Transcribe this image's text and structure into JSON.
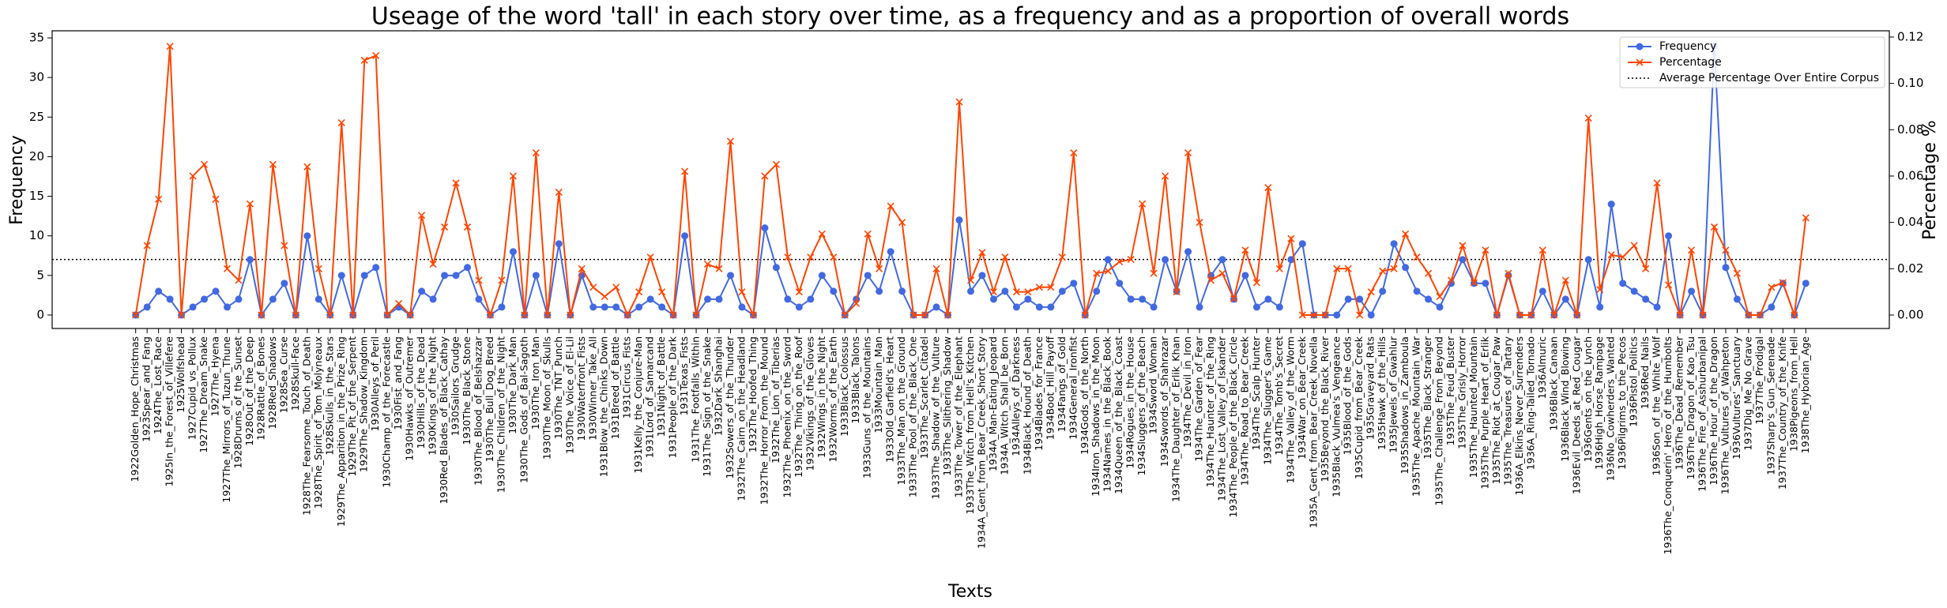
{
  "chart_data": {
    "type": "line",
    "title": "Useage of the word 'tall' in each story over time, as a frequency and as a proportion of overall words",
    "x_label": "Texts",
    "y_label": "Frequency",
    "y2_label": "Percentage %",
    "legend": "upper right",
    "categories": [
      "1922Golden_Hope_Christmas",
      "1923Spear_and_Fang",
      "1924The_Lost_Race",
      "1925In_the_Forest_of_Villefere",
      "1925Wolfshead",
      "1927Cupid_vs_Pollux",
      "1927The_Dream_Snake",
      "1927The_Hyena",
      "1927The_Mirrors_of_Tuzun_Thune",
      "1928Drums_of_the_Sunset",
      "1928Out_of_the_Deep",
      "1928Rattle_of_Bones",
      "1928Red_Shadows",
      "1928Sea_Curse",
      "1928Skull-Face",
      "1928The_Fearsome_Touch_of_Death",
      "1928The_Spirit_of_Tom_Molyneaux",
      "1928Skulls_in_the_Stars",
      "1929The_Apparition_in_the_Prize_Ring",
      "1929The_Pit_of_the_Serpent",
      "1929The_Shadow_Kingdom",
      "1930Alleys_of_Peril",
      "1930Champ_of_the_Forecastle",
      "1930Fist_and_Fang",
      "1930Hawks_of_Outremer",
      "1930Hills_of_the_Dead",
      "1930Kings_of_the_Night",
      "1930Red_Blades_of_Black_Cathay",
      "1930Sailors_Grudge",
      "1930The_Black_Stone",
      "1930The_Blood_of_Belshazzar",
      "1930The_Bull_Dog_Breed",
      "1930The_Children_of_the_Night",
      "1930The_Dark_Man",
      "1930The_Gods_of_Bal-Sagoth",
      "1930The_Iron_Man",
      "1930The_Moon_of_Skulls",
      "1930The_TNT_Punch",
      "1930The_Voice_of_El-Lil",
      "1930Waterfront_Fists",
      "1930Winner_Take_All",
      "1931Blow_the_Chinks_Down",
      "1931Breed_of_Battle",
      "1931Circus_Fists",
      "1931Kelly_the_Conjure-Man",
      "1931Lord_of_Samarcand",
      "1931Night_of_Battle",
      "1931People_of_the_Dark",
      "1931Texas_Fists",
      "1931The_Footfalls_Within",
      "1931The_Sign_of_the_Snake",
      "1932Dark_Shanghai",
      "1932Sowers_of_the_Thunder",
      "1932The_Cairn_on_the_Headland",
      "1932The_Hoofed_Thing",
      "1932The_Horror_From_the_Mound",
      "1932The_Lion_of_Tiberias",
      "1932The_Phoenix_on_the_Sword",
      "1932The_Thing_on_the_Roof",
      "1932Vikings_of_the_Gloves",
      "1932Wings_in_the_Night",
      "1932Worms_of_the_Earth",
      "1933Black_Colossus",
      "1933Black_Talons",
      "1933Guns_of_the_Mountains",
      "1933Mountain_Man",
      "1933Old_Garfield's_Heart",
      "1933The_Man_on_the_Ground",
      "1933The_Pool_of_the_Black_One",
      "1933The_Scarlet_Citadel",
      "1933The_Shadow_of_the_Vulture",
      "1933The_Slithering_Shadow",
      "1933The_Tower_of_the_Elephant",
      "1933The_Witch_from_Hell's_Kitchen",
      "1934A_Gent_from_Bear_Creek_Short_Story",
      "1934A_Man-Eating_Jeopard",
      "1934A_Witch_Shall_be_Born",
      "1934Alleys_of_Darkness",
      "1934Black_Hound_of_Death",
      "1934Blades_for_France",
      "1934Boot_Hill_Payoff",
      "1934Fangs_of_Gold",
      "1934General_Ironfist",
      "1934Gods_of_the_North",
      "1934Iron_Shadows_in_the_Moon",
      "1934Names_in_the_Black_Book",
      "1934Queen_of_the_Black_Coast",
      "1934Rogues_in_the_House",
      "1934Sluggers_of_the_Beach",
      "1934Sword_Woman",
      "1934Swords_of_Shahrazar",
      "1934The_Daughter_of_Erlik_Khan",
      "1934The_Devil_in_Iron",
      "1934The_Garden_of_Fear",
      "1934The_Haunter_of_the_Ring",
      "1934The_Lost_Valley_of_Iskander",
      "1934The_People_of_the_Black_Circle",
      "1934The_Road_to_Bear_Creek",
      "1934The_Scalp_Hunter",
      "1934The_Slugger's_Game",
      "1934The_Tomb's_Secret",
      "1934The_Valley_of_the_Worm",
      "1934War_on_Bear_Creek",
      "1935A_Gent_from_Bear_Creek_Novella",
      "1935Beyond_the_Black_River",
      "1935Black_Vulmea's_Vengeance",
      "1935Blood_of_the_Gods",
      "1935Cupid_from_Bear_Creek",
      "1935Graveyard_Rats",
      "1935Hawk_of_the_Hills",
      "1935Jewels_of_Gwahlur",
      "1935Shadows_in_Zamboula",
      "1935The_Apache_Mountain_War",
      "1935The_Black_Stranger",
      "1935The_Challenge_From_Beyond",
      "1935The_Feud_Buster",
      "1935The_Grisly_Horror",
      "1935The_Haunted_Mountain",
      "1935The_Purple_Heart_of_Erlik",
      "1935The_Riot_at_Cougar_Paw",
      "1935The_Treasures_of_Tartary",
      "1936A_Elkins_Never_Surrenders",
      "1936A_Ring-Tailed_Tornado",
      "1936Almuric",
      "1936Black_Canaan",
      "1936Black_Wind_Blowing",
      "1936Evil_Deeds_at_Red_Cougar",
      "1936Gents_on_the_Lynch",
      "1936High_Horse_Rampage",
      "1936No_Cowherders_Wanted",
      "1936Pilgrims_to_the_Pecos",
      "1936Pistol_Politics",
      "1936Red_Nails",
      "1936Son_of_the_White_Wolf",
      "1936The_Conquerin'_Hero_of_the_Humbolts",
      "1936The_Dead_Remember",
      "1936The_Dragon_of_Kao_Tsu",
      "1936The_Fire_of_Asshurbanipal",
      "1936The_Hour_of_the_Dragon",
      "1936The_Vultures_of_Wahpeton",
      "1936Vultures'_Sanctuary",
      "1937Dig_Me_No_Grave",
      "1937The_Prodigal",
      "1937Sharp's_Gun_Serenade",
      "1937The_Country_of_the_Knife",
      "1938Pigeons_from_Hell",
      "1938The_Hyborian_Age"
    ],
    "series": [
      {
        "name": "Frequency",
        "color": "#4169e1",
        "marker": "o",
        "axis": "y",
        "values": [
          0,
          1,
          3,
          2,
          0,
          1,
          2,
          3,
          1,
          2,
          7,
          0,
          2,
          4,
          0,
          10,
          2,
          0,
          5,
          0,
          5,
          6,
          0,
          1,
          0,
          3,
          2,
          5,
          5,
          6,
          2,
          0,
          1,
          8,
          0,
          5,
          0,
          9,
          0,
          5,
          1,
          1,
          1,
          0,
          1,
          2,
          1,
          0,
          10,
          0,
          2,
          2,
          5,
          1,
          0,
          11,
          6,
          2,
          1,
          2,
          5,
          3,
          0,
          2,
          5,
          3,
          8,
          3,
          0,
          0,
          1,
          0,
          12,
          3,
          5,
          2,
          3,
          1,
          2,
          1,
          1,
          3,
          4,
          0,
          3,
          7,
          4,
          2,
          2,
          1,
          7,
          3,
          8,
          1,
          5,
          7,
          2,
          5,
          1,
          2,
          1,
          7,
          9,
          0,
          0,
          0,
          2,
          2,
          0,
          3,
          9,
          6,
          3,
          2,
          1,
          4,
          7,
          4,
          4,
          0,
          5,
          0,
          0,
          3,
          0,
          2,
          0,
          7,
          1,
          14,
          4,
          3,
          2,
          1,
          10,
          0,
          3,
          0,
          34,
          6,
          2,
          0,
          0,
          1,
          4,
          0,
          4
        ]
      },
      {
        "name": "Percentage",
        "color": "#ff4500",
        "marker": "x",
        "axis": "y2",
        "values": [
          0,
          0.03,
          0.05,
          0.116,
          0,
          0.06,
          0.065,
          0.05,
          0.02,
          0.015,
          0.048,
          0,
          0.065,
          0.03,
          0,
          0.064,
          0.02,
          0,
          0.083,
          0,
          0.11,
          0.112,
          0,
          0.005,
          0,
          0.043,
          0.022,
          0.038,
          0.057,
          0.038,
          0.015,
          0,
          0.015,
          0.06,
          0,
          0.07,
          0,
          0.053,
          0,
          0.02,
          0.012,
          0.008,
          0.012,
          0,
          0.01,
          0.025,
          0.01,
          0,
          0.062,
          0,
          0.022,
          0.02,
          0.075,
          0.01,
          0,
          0.06,
          0.065,
          0.025,
          0.01,
          0.025,
          0.035,
          0.025,
          0,
          0.005,
          0.035,
          0.02,
          0.047,
          0.04,
          0,
          0,
          0.02,
          0,
          0.092,
          0.015,
          0.027,
          0.01,
          0.025,
          0.01,
          0.01,
          0.012,
          0.012,
          0.025,
          0.07,
          0,
          0.018,
          0.019,
          0.023,
          0.024,
          0.048,
          0.018,
          0.06,
          0.01,
          0.07,
          0.04,
          0.015,
          0.018,
          0.007,
          0.028,
          0.014,
          0.055,
          0.02,
          0.033,
          0,
          0,
          0,
          0.02,
          0.02,
          0,
          0.01,
          0.019,
          0.02,
          0.035,
          0.025,
          0.018,
          0.008,
          0.015,
          0.03,
          0.014,
          0.028,
          0,
          0.018,
          0,
          0,
          0.028,
          0,
          0.015,
          0,
          0.085,
          0.011,
          0.026,
          0.025,
          0.03,
          0.02,
          0.057,
          0.013,
          0,
          0.028,
          0,
          0.038,
          0.028,
          0.018,
          0,
          0,
          0.012,
          0.014,
          0,
          0.042
        ]
      }
    ],
    "reference_line": {
      "name": "Average Percentage Over Entire Corpus",
      "value": 0.024,
      "axis": "y2",
      "style": "dotted",
      "color": "#000000"
    },
    "ylim": [
      -1.7,
      35.9
    ],
    "yticks": [
      0,
      5,
      10,
      15,
      20,
      25,
      30,
      35
    ],
    "y2lim": [
      -0.0058,
      0.1227
    ],
    "y2ticks": [
      {
        "value": 0,
        "label": "0.00"
      },
      {
        "value": 0.02,
        "label": "0.02"
      },
      {
        "value": 0.04,
        "label": "0.04"
      },
      {
        "value": 0.06,
        "label": "0.06"
      },
      {
        "value": 0.08,
        "label": "0.08"
      },
      {
        "value": 0.1,
        "label": "0.10"
      },
      {
        "value": 0.12,
        "label": "0.12"
      }
    ]
  }
}
